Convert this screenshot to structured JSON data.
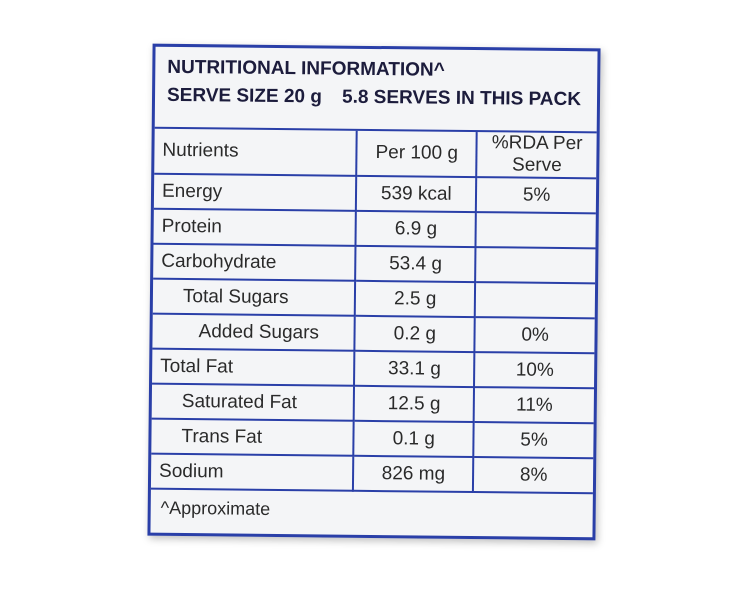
{
  "header": {
    "title": "NUTRITIONAL INFORMATION^",
    "serve_size": "SERVE SIZE 20 g",
    "serves": "5.8 SERVES IN THIS PACK"
  },
  "table": {
    "columns": [
      "Nutrients",
      "Per 100 g",
      "%RDA Per Serve"
    ],
    "rows": [
      [
        "Energy",
        "539 kcal",
        "5%"
      ],
      [
        "Protein",
        "6.9 g"
      ],
      [
        "Carbohydrate",
        "53.4 g"
      ],
      [
        "Total Sugars",
        "2.5 g"
      ],
      [
        "Added Sugars",
        "0.2 g",
        "0%"
      ],
      [
        "Total Fat",
        "33.1 g",
        "10%"
      ],
      [
        "Saturated Fat",
        "12.5 g",
        "11%"
      ],
      [
        "Trans Fat",
        "0.1 g",
        "5%"
      ],
      [
        "Sodium",
        "826 mg",
        "8%"
      ]
    ]
  },
  "footnote": "^Approximate"
}
